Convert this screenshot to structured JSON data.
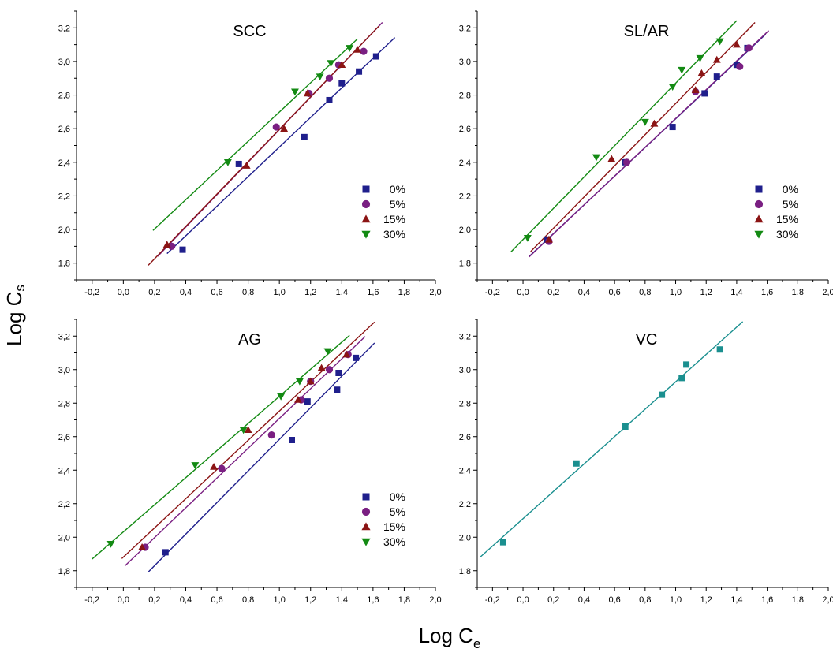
{
  "figure": {
    "xlabel_main": "Log C",
    "xlabel_sub": "e",
    "ylabel_main": "Log C",
    "ylabel_sub": "s"
  },
  "series_colors": {
    "0%": "#1f1f8c",
    "5%": "#7a1f82",
    "15%": "#8b1414",
    "30%": "#138a13",
    "VC": "#1a8f8f"
  },
  "series_markers": {
    "0%": "square",
    "5%": "circle",
    "15%": "triangle-up",
    "30%": "triangle-down",
    "VC": "square"
  },
  "x_ticks": [
    "-0,2",
    "0,0",
    "0,2",
    "0,4",
    "0,6",
    "0,8",
    "1,0",
    "1,2",
    "1,4",
    "1,6",
    "1,8",
    "2,0"
  ],
  "y_ticks": [
    "1,8",
    "2,0",
    "2,2",
    "2,4",
    "2,6",
    "2,8",
    "3,0",
    "3,2"
  ],
  "chart_data": [
    {
      "type": "scatter",
      "title": "SCC",
      "xlim": [
        -0.3,
        2.0
      ],
      "ylim": [
        1.7,
        3.3
      ],
      "legend_position": "bottom-right",
      "series": [
        {
          "name": "0%",
          "x": [
            0.38,
            0.74,
            1.16,
            1.32,
            1.4,
            1.51,
            1.62
          ],
          "y": [
            1.88,
            2.39,
            2.55,
            2.77,
            2.87,
            2.94,
            3.03
          ],
          "fit_x": [
            0.28,
            1.74
          ]
        },
        {
          "name": "5%",
          "x": [
            0.31,
            0.98,
            1.19,
            1.32,
            1.38,
            1.54
          ],
          "y": [
            1.9,
            2.61,
            2.81,
            2.9,
            2.98,
            3.06
          ],
          "fit_x": [
            0.22,
            1.66
          ]
        },
        {
          "name": "15%",
          "x": [
            0.28,
            0.79,
            1.03,
            1.18,
            1.4,
            1.5
          ],
          "y": [
            1.91,
            2.38,
            2.6,
            2.81,
            2.98,
            3.07
          ],
          "fit_x": [
            0.16,
            1.64
          ]
        },
        {
          "name": "30%",
          "x": [
            0.67,
            1.1,
            1.26,
            1.33,
            1.45
          ],
          "y": [
            2.4,
            2.82,
            2.91,
            2.99,
            3.08
          ],
          "fit_x": [
            0.19,
            1.5
          ]
        }
      ]
    },
    {
      "type": "scatter",
      "title": "SL/AR",
      "xlim": [
        -0.3,
        2.0
      ],
      "ylim": [
        1.7,
        3.3
      ],
      "legend_position": "bottom-right",
      "series": [
        {
          "name": "0%",
          "x": [
            0.16,
            0.67,
            0.98,
            1.19,
            1.27,
            1.4,
            1.47
          ],
          "y": [
            1.94,
            2.4,
            2.61,
            2.81,
            2.91,
            2.98,
            3.08
          ],
          "fit_x": [
            0.04,
            1.59
          ]
        },
        {
          "name": "5%",
          "x": [
            0.17,
            0.68,
            1.13,
            1.42,
            1.48
          ],
          "y": [
            1.93,
            2.4,
            2.82,
            2.97,
            3.08
          ],
          "fit_x": [
            0.04,
            1.61
          ]
        },
        {
          "name": "15%",
          "x": [
            0.17,
            0.58,
            0.86,
            1.13,
            1.17,
            1.27,
            1.4
          ],
          "y": [
            1.94,
            2.42,
            2.63,
            2.83,
            2.93,
            3.01,
            3.1
          ],
          "fit_x": [
            0.05,
            1.52
          ]
        },
        {
          "name": "30%",
          "x": [
            0.03,
            0.48,
            0.8,
            0.98,
            1.04,
            1.16,
            1.29
          ],
          "y": [
            1.95,
            2.43,
            2.64,
            2.85,
            2.95,
            3.02,
            3.12
          ],
          "fit_x": [
            -0.08,
            1.4
          ]
        }
      ]
    },
    {
      "type": "scatter",
      "title": "AG",
      "xlim": [
        -0.3,
        2.0
      ],
      "ylim": [
        1.7,
        3.3
      ],
      "legend_position": "bottom-right",
      "series": [
        {
          "name": "0%",
          "x": [
            0.27,
            1.08,
            1.18,
            1.37,
            1.38,
            1.49
          ],
          "y": [
            1.91,
            2.58,
            2.81,
            2.88,
            2.98,
            3.07
          ],
          "fit_x": [
            0.16,
            1.61
          ]
        },
        {
          "name": "5%",
          "x": [
            0.14,
            0.63,
            0.95,
            1.14,
            1.2,
            1.32,
            1.44
          ],
          "y": [
            1.94,
            2.41,
            2.61,
            2.82,
            2.93,
            3.0,
            3.09
          ],
          "fit_x": [
            0.01,
            1.55
          ]
        },
        {
          "name": "15%",
          "x": [
            0.12,
            0.58,
            0.8,
            1.12,
            1.2,
            1.27,
            1.43
          ],
          "y": [
            1.94,
            2.42,
            2.64,
            2.82,
            2.93,
            3.01,
            3.09
          ],
          "fit_x": [
            -0.01,
            1.61
          ]
        },
        {
          "name": "30%",
          "x": [
            -0.08,
            0.46,
            0.77,
            1.01,
            1.13,
            1.31
          ],
          "y": [
            1.96,
            2.43,
            2.64,
            2.84,
            2.93,
            3.11
          ],
          "fit_x": [
            -0.2,
            1.45
          ]
        }
      ]
    },
    {
      "type": "scatter",
      "title": "VC",
      "xlim": [
        -0.3,
        2.0
      ],
      "ylim": [
        1.7,
        3.3
      ],
      "legend_position": "none",
      "series": [
        {
          "name": "VC",
          "x": [
            -0.13,
            0.35,
            0.67,
            0.91,
            1.04,
            1.07,
            1.29
          ],
          "y": [
            1.97,
            2.44,
            2.66,
            2.85,
            2.95,
            3.03,
            3.12
          ],
          "fit_x": [
            -0.28,
            1.44
          ]
        }
      ]
    }
  ]
}
